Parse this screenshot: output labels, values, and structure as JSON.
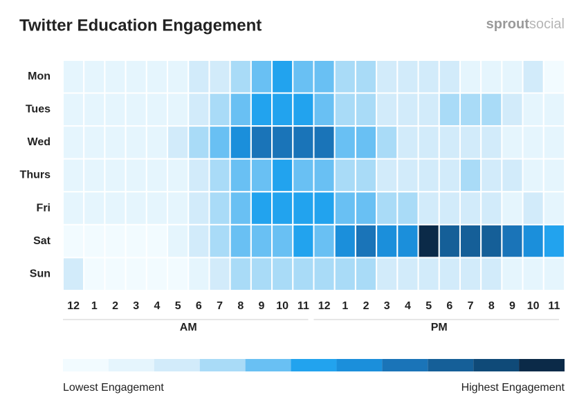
{
  "chart_data": {
    "type": "heatmap",
    "title": "Twitter Education Engagement",
    "brand": [
      "sprout",
      "social"
    ],
    "x": [
      "12",
      "1",
      "2",
      "3",
      "4",
      "5",
      "6",
      "7",
      "8",
      "9",
      "10",
      "11",
      "12",
      "1",
      "2",
      "3",
      "4",
      "5",
      "6",
      "7",
      "8",
      "9",
      "10",
      "11"
    ],
    "x_groups": [
      {
        "label": "AM",
        "span": [
          0,
          11
        ]
      },
      {
        "label": "PM",
        "span": [
          12,
          23
        ]
      }
    ],
    "y": [
      "Mon",
      "Tues",
      "Wed",
      "Thurs",
      "Fri",
      "Sat",
      "Sun"
    ],
    "values": [
      [
        1,
        1,
        1,
        1,
        1,
        1,
        2,
        2,
        3,
        4,
        5,
        4,
        4,
        3,
        3,
        2,
        2,
        2,
        2,
        1,
        1,
        1,
        2,
        0
      ],
      [
        1,
        1,
        1,
        1,
        1,
        1,
        2,
        3,
        4,
        5,
        5,
        5,
        4,
        3,
        3,
        2,
        2,
        2,
        3,
        3,
        3,
        2,
        1,
        1
      ],
      [
        1,
        1,
        1,
        1,
        1,
        2,
        3,
        4,
        6,
        7,
        7,
        7,
        7,
        4,
        4,
        3,
        2,
        2,
        2,
        2,
        2,
        1,
        1,
        1
      ],
      [
        1,
        1,
        1,
        1,
        1,
        1,
        2,
        3,
        4,
        4,
        5,
        4,
        4,
        3,
        3,
        2,
        2,
        2,
        2,
        3,
        2,
        2,
        1,
        1
      ],
      [
        1,
        1,
        1,
        1,
        1,
        1,
        2,
        3,
        4,
        5,
        5,
        5,
        5,
        4,
        4,
        3,
        3,
        2,
        2,
        2,
        2,
        1,
        2,
        1
      ],
      [
        0,
        0,
        0,
        0,
        0,
        1,
        2,
        3,
        4,
        4,
        4,
        5,
        4,
        6,
        7,
        6,
        6,
        10,
        8,
        8,
        8,
        7,
        6,
        5
      ],
      [
        2,
        0,
        0,
        0,
        0,
        0,
        1,
        2,
        3,
        3,
        3,
        3,
        3,
        3,
        3,
        2,
        2,
        2,
        2,
        2,
        2,
        1,
        1,
        1
      ]
    ],
    "colors": [
      "#f2fbff",
      "#e5f5fd",
      "#d2ebfa",
      "#a9dbf7",
      "#69c0f3",
      "#22a3ee",
      "#1b8fdb",
      "#1a74b8",
      "#155f98",
      "#0f4a78",
      "#0b2a48"
    ],
    "legend_low": "Lowest Engagement",
    "legend_high": "Highest Engagement"
  }
}
